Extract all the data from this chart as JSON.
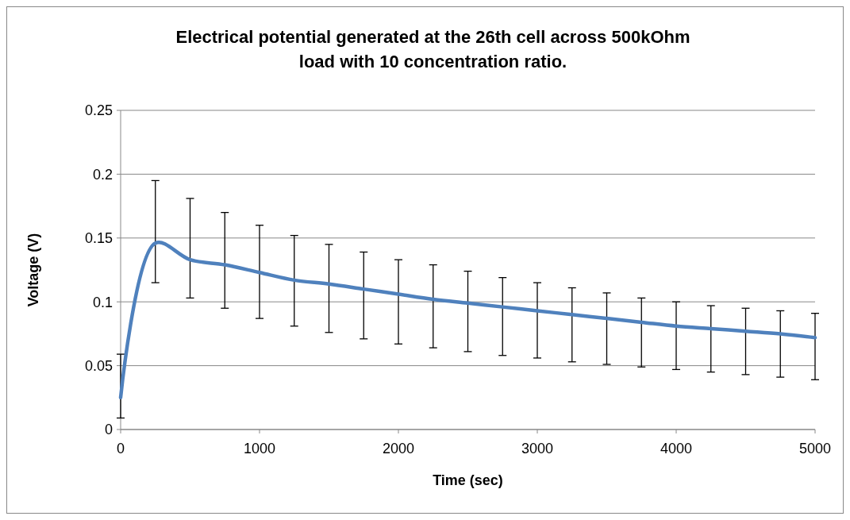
{
  "chart_data": {
    "type": "line",
    "title": "Electrical potential generated at the 26th cell across 500kOhm load  with 10 concentration ratio.",
    "xlabel": "Time (sec)",
    "ylabel": "Voltage (V)",
    "x": [
      0,
      250,
      500,
      750,
      1000,
      1250,
      1500,
      1750,
      2000,
      2250,
      2500,
      2750,
      3000,
      3250,
      3500,
      3750,
      4000,
      4250,
      4500,
      4750,
      5000
    ],
    "series": [
      {
        "color": "#4f81bd",
        "values": [
          0.025,
          0.146,
          0.133,
          0.129,
          0.123,
          0.117,
          0.114,
          0.11,
          0.106,
          0.102,
          0.099,
          0.096,
          0.093,
          0.09,
          0.087,
          0.084,
          0.081,
          0.079,
          0.077,
          0.075,
          0.072
        ],
        "errors": [
          [
            0.009,
            0.059
          ],
          [
            0.115,
            0.195
          ],
          [
            0.103,
            0.181
          ],
          [
            0.095,
            0.17
          ],
          [
            0.087,
            0.16
          ],
          [
            0.081,
            0.152
          ],
          [
            0.076,
            0.145
          ],
          [
            0.071,
            0.139
          ],
          [
            0.067,
            0.133
          ],
          [
            0.064,
            0.129
          ],
          [
            0.061,
            0.124
          ],
          [
            0.058,
            0.119
          ],
          [
            0.056,
            0.115
          ],
          [
            0.053,
            0.111
          ],
          [
            0.051,
            0.107
          ],
          [
            0.049,
            0.103
          ],
          [
            0.047,
            0.1
          ],
          [
            0.045,
            0.097
          ],
          [
            0.043,
            0.095
          ],
          [
            0.041,
            0.093
          ],
          [
            0.039,
            0.091
          ]
        ]
      }
    ],
    "xlim": [
      0,
      5000
    ],
    "xticks": [
      0,
      1000,
      2000,
      3000,
      4000,
      5000
    ],
    "ylim": [
      0,
      0.25
    ],
    "yticks": [
      0,
      0.05,
      0.1,
      0.15,
      0.2,
      0.25
    ],
    "grid": "y",
    "marker": "none",
    "line_style": "solid"
  }
}
